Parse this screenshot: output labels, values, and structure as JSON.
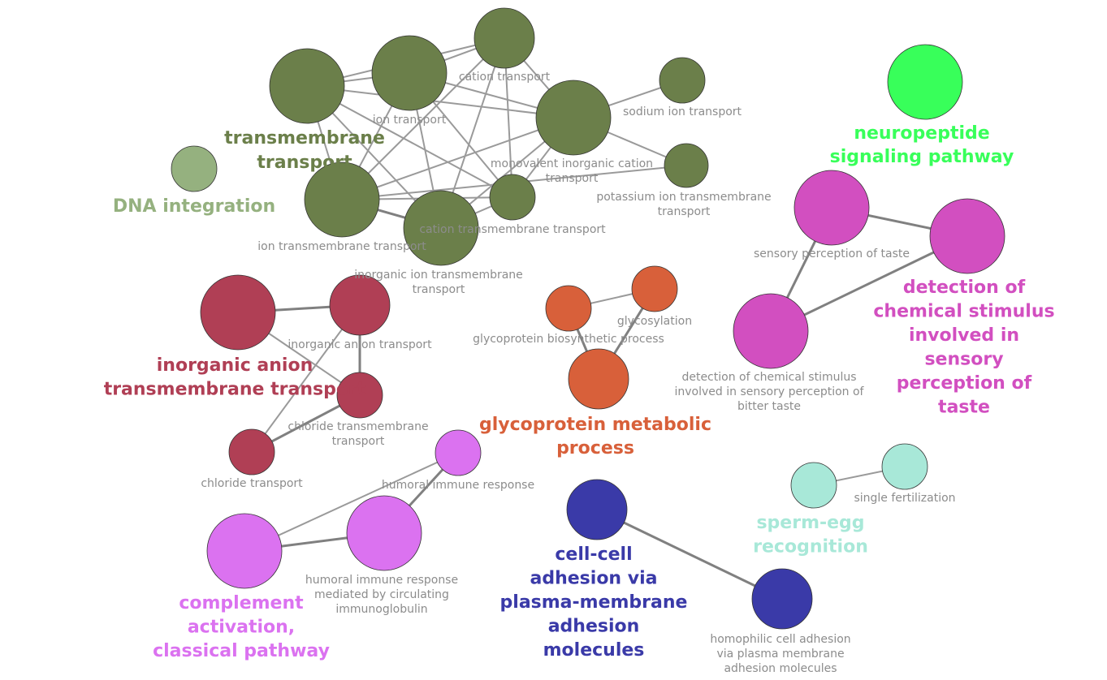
{
  "colors": {
    "transmembrane": "#6b7f4a",
    "dna": "#95b17f",
    "neuropeptide": "#38ff5a",
    "taste": "#d24fc0",
    "anion": "#b03f55",
    "glyco": "#d8603a",
    "complement": "#db72f0",
    "adhesion": "#3a3aa8",
    "sperm": "#a8e8d8",
    "edge": "#9a9a9a"
  },
  "nodes": [
    {
      "id": "transmembrane-transport",
      "label": "",
      "group": "transmembrane"
    },
    {
      "id": "ion-transport",
      "label": "ion transport",
      "group": "transmembrane"
    },
    {
      "id": "cation-transport",
      "label": "cation transport",
      "group": "transmembrane"
    },
    {
      "id": "monovalent-inorganic-cation-transport",
      "label": "monovalent inorganic cation transport",
      "group": "transmembrane"
    },
    {
      "id": "sodium-ion-transport",
      "label": "sodium ion transport",
      "group": "transmembrane"
    },
    {
      "id": "potassium-ion-transmembrane-transport",
      "label": "potassium ion transmembrane transport",
      "group": "transmembrane"
    },
    {
      "id": "ion-transmembrane-transport",
      "label": "ion transmembrane transport",
      "group": "transmembrane"
    },
    {
      "id": "cation-transmembrane-transport",
      "label": "cation transmembrane transport",
      "group": "transmembrane"
    },
    {
      "id": "inorganic-ion-transmembrane-transport",
      "label": "inorganic ion transmembrane transport",
      "group": "transmembrane"
    },
    {
      "id": "dna-integration",
      "label": "",
      "group": "dna"
    },
    {
      "id": "neuropeptide-signaling-pathway",
      "label": "",
      "group": "neuropeptide"
    },
    {
      "id": "sensory-perception-of-taste",
      "label": "sensory perception of taste",
      "group": "taste"
    },
    {
      "id": "detection-chemical-stimulus-taste",
      "label": "",
      "group": "taste"
    },
    {
      "id": "detection-chemical-stimulus-bitter",
      "label": "detection of chemical stimulus involved in sensory perception of bitter taste",
      "group": "taste"
    },
    {
      "id": "inorganic-anion-transmembrane-transport",
      "label": "",
      "group": "anion"
    },
    {
      "id": "inorganic-anion-transport",
      "label": "inorganic anion transport",
      "group": "anion"
    },
    {
      "id": "chloride-transmembrane-transport",
      "label": "chloride transmembrane transport",
      "group": "anion"
    },
    {
      "id": "chloride-transport",
      "label": "chloride transport",
      "group": "anion"
    },
    {
      "id": "glycoprotein-biosynthetic-process",
      "label": "glycoprotein biosynthetic process",
      "group": "glyco"
    },
    {
      "id": "glycosylation",
      "label": "glycosylation",
      "group": "glyco"
    },
    {
      "id": "glycoprotein-metabolic-process",
      "label": "",
      "group": "glyco"
    },
    {
      "id": "humoral-immune-response",
      "label": "humoral immune response",
      "group": "complement"
    },
    {
      "id": "humoral-immune-response-ig",
      "label": "humoral immune response mediated by circulating immunoglobulin",
      "group": "complement"
    },
    {
      "id": "complement-activation-classical",
      "label": "",
      "group": "complement"
    },
    {
      "id": "cell-cell-adhesion",
      "label": "",
      "group": "adhesion"
    },
    {
      "id": "homophilic-cell-adhesion",
      "label": "homophilic cell adhesion via plasma membrane adhesion molecules",
      "group": "adhesion"
    },
    {
      "id": "sperm-egg-recognition",
      "label": "",
      "group": "sperm"
    },
    {
      "id": "single-fertilization",
      "label": "single fertilization",
      "group": "sperm"
    }
  ],
  "group_labels": [
    {
      "group": "transmembrane",
      "text": "transmembrane transport"
    },
    {
      "group": "dna",
      "text": "DNA integration"
    },
    {
      "group": "neuropeptide",
      "text": "neuropeptide signaling pathway"
    },
    {
      "group": "taste",
      "text": "detection of chemical stimulus involved in sensory perception of taste"
    },
    {
      "group": "anion",
      "text": "inorganic anion transmembrane transport"
    },
    {
      "group": "glyco",
      "text": "glycoprotein metabolic process"
    },
    {
      "group": "complement",
      "text": "complement activation, classical pathway"
    },
    {
      "group": "adhesion",
      "text": "cell-cell adhesion via plasma-membrane adhesion molecules"
    },
    {
      "group": "sperm",
      "text": "sperm-egg recognition"
    }
  ],
  "edges": [
    [
      "transmembrane-transport",
      "ion-transport"
    ],
    [
      "transmembrane-transport",
      "cation-transport"
    ],
    [
      "transmembrane-transport",
      "monovalent-inorganic-cation-transport"
    ],
    [
      "transmembrane-transport",
      "ion-transmembrane-transport"
    ],
    [
      "transmembrane-transport",
      "cation-transmembrane-transport"
    ],
    [
      "transmembrane-transport",
      "inorganic-ion-transmembrane-transport"
    ],
    [
      "ion-transport",
      "cation-transport"
    ],
    [
      "ion-transport",
      "monovalent-inorganic-cation-transport"
    ],
    [
      "ion-transport",
      "ion-transmembrane-transport"
    ],
    [
      "ion-transport",
      "cation-transmembrane-transport"
    ],
    [
      "ion-transport",
      "inorganic-ion-transmembrane-transport"
    ],
    [
      "cation-transport",
      "monovalent-inorganic-cation-transport"
    ],
    [
      "cation-transport",
      "ion-transmembrane-transport"
    ],
    [
      "cation-transport",
      "cation-transmembrane-transport"
    ],
    [
      "cation-transport",
      "inorganic-ion-transmembrane-transport"
    ],
    [
      "monovalent-inorganic-cation-transport",
      "sodium-ion-transport"
    ],
    [
      "monovalent-inorganic-cation-transport",
      "potassium-ion-transmembrane-transport"
    ],
    [
      "monovalent-inorganic-cation-transport",
      "ion-transmembrane-transport"
    ],
    [
      "monovalent-inorganic-cation-transport",
      "cation-transmembrane-transport"
    ],
    [
      "monovalent-inorganic-cation-transport",
      "inorganic-ion-transmembrane-transport"
    ],
    [
      "ion-transmembrane-transport",
      "cation-transmembrane-transport"
    ],
    [
      "ion-transmembrane-transport",
      "inorganic-ion-transmembrane-transport"
    ],
    [
      "ion-transmembrane-transport",
      "potassium-ion-transmembrane-transport"
    ],
    [
      "cation-transmembrane-transport",
      "inorganic-ion-transmembrane-transport"
    ],
    [
      "sensory-perception-of-taste",
      "detection-chemical-stimulus-taste"
    ],
    [
      "sensory-perception-of-taste",
      "detection-chemical-stimulus-bitter"
    ],
    [
      "detection-chemical-stimulus-taste",
      "detection-chemical-stimulus-bitter"
    ],
    [
      "inorganic-anion-transmembrane-transport",
      "inorganic-anion-transport"
    ],
    [
      "inorganic-anion-transmembrane-transport",
      "chloride-transmembrane-transport"
    ],
    [
      "inorganic-anion-transport",
      "chloride-transmembrane-transport"
    ],
    [
      "inorganic-anion-transport",
      "chloride-transport"
    ],
    [
      "chloride-transmembrane-transport",
      "chloride-transport"
    ],
    [
      "glycoprotein-biosynthetic-process",
      "glycosylation"
    ],
    [
      "glycoprotein-biosynthetic-process",
      "glycoprotein-metabolic-process"
    ],
    [
      "glycosylation",
      "glycoprotein-metabolic-process"
    ],
    [
      "humoral-immune-response",
      "humoral-immune-response-ig"
    ],
    [
      "humoral-immune-response",
      "complement-activation-classical"
    ],
    [
      "humoral-immune-response-ig",
      "complement-activation-classical"
    ],
    [
      "cell-cell-adhesion",
      "homophilic-cell-adhesion"
    ],
    [
      "sperm-egg-recognition",
      "single-fertilization"
    ]
  ]
}
